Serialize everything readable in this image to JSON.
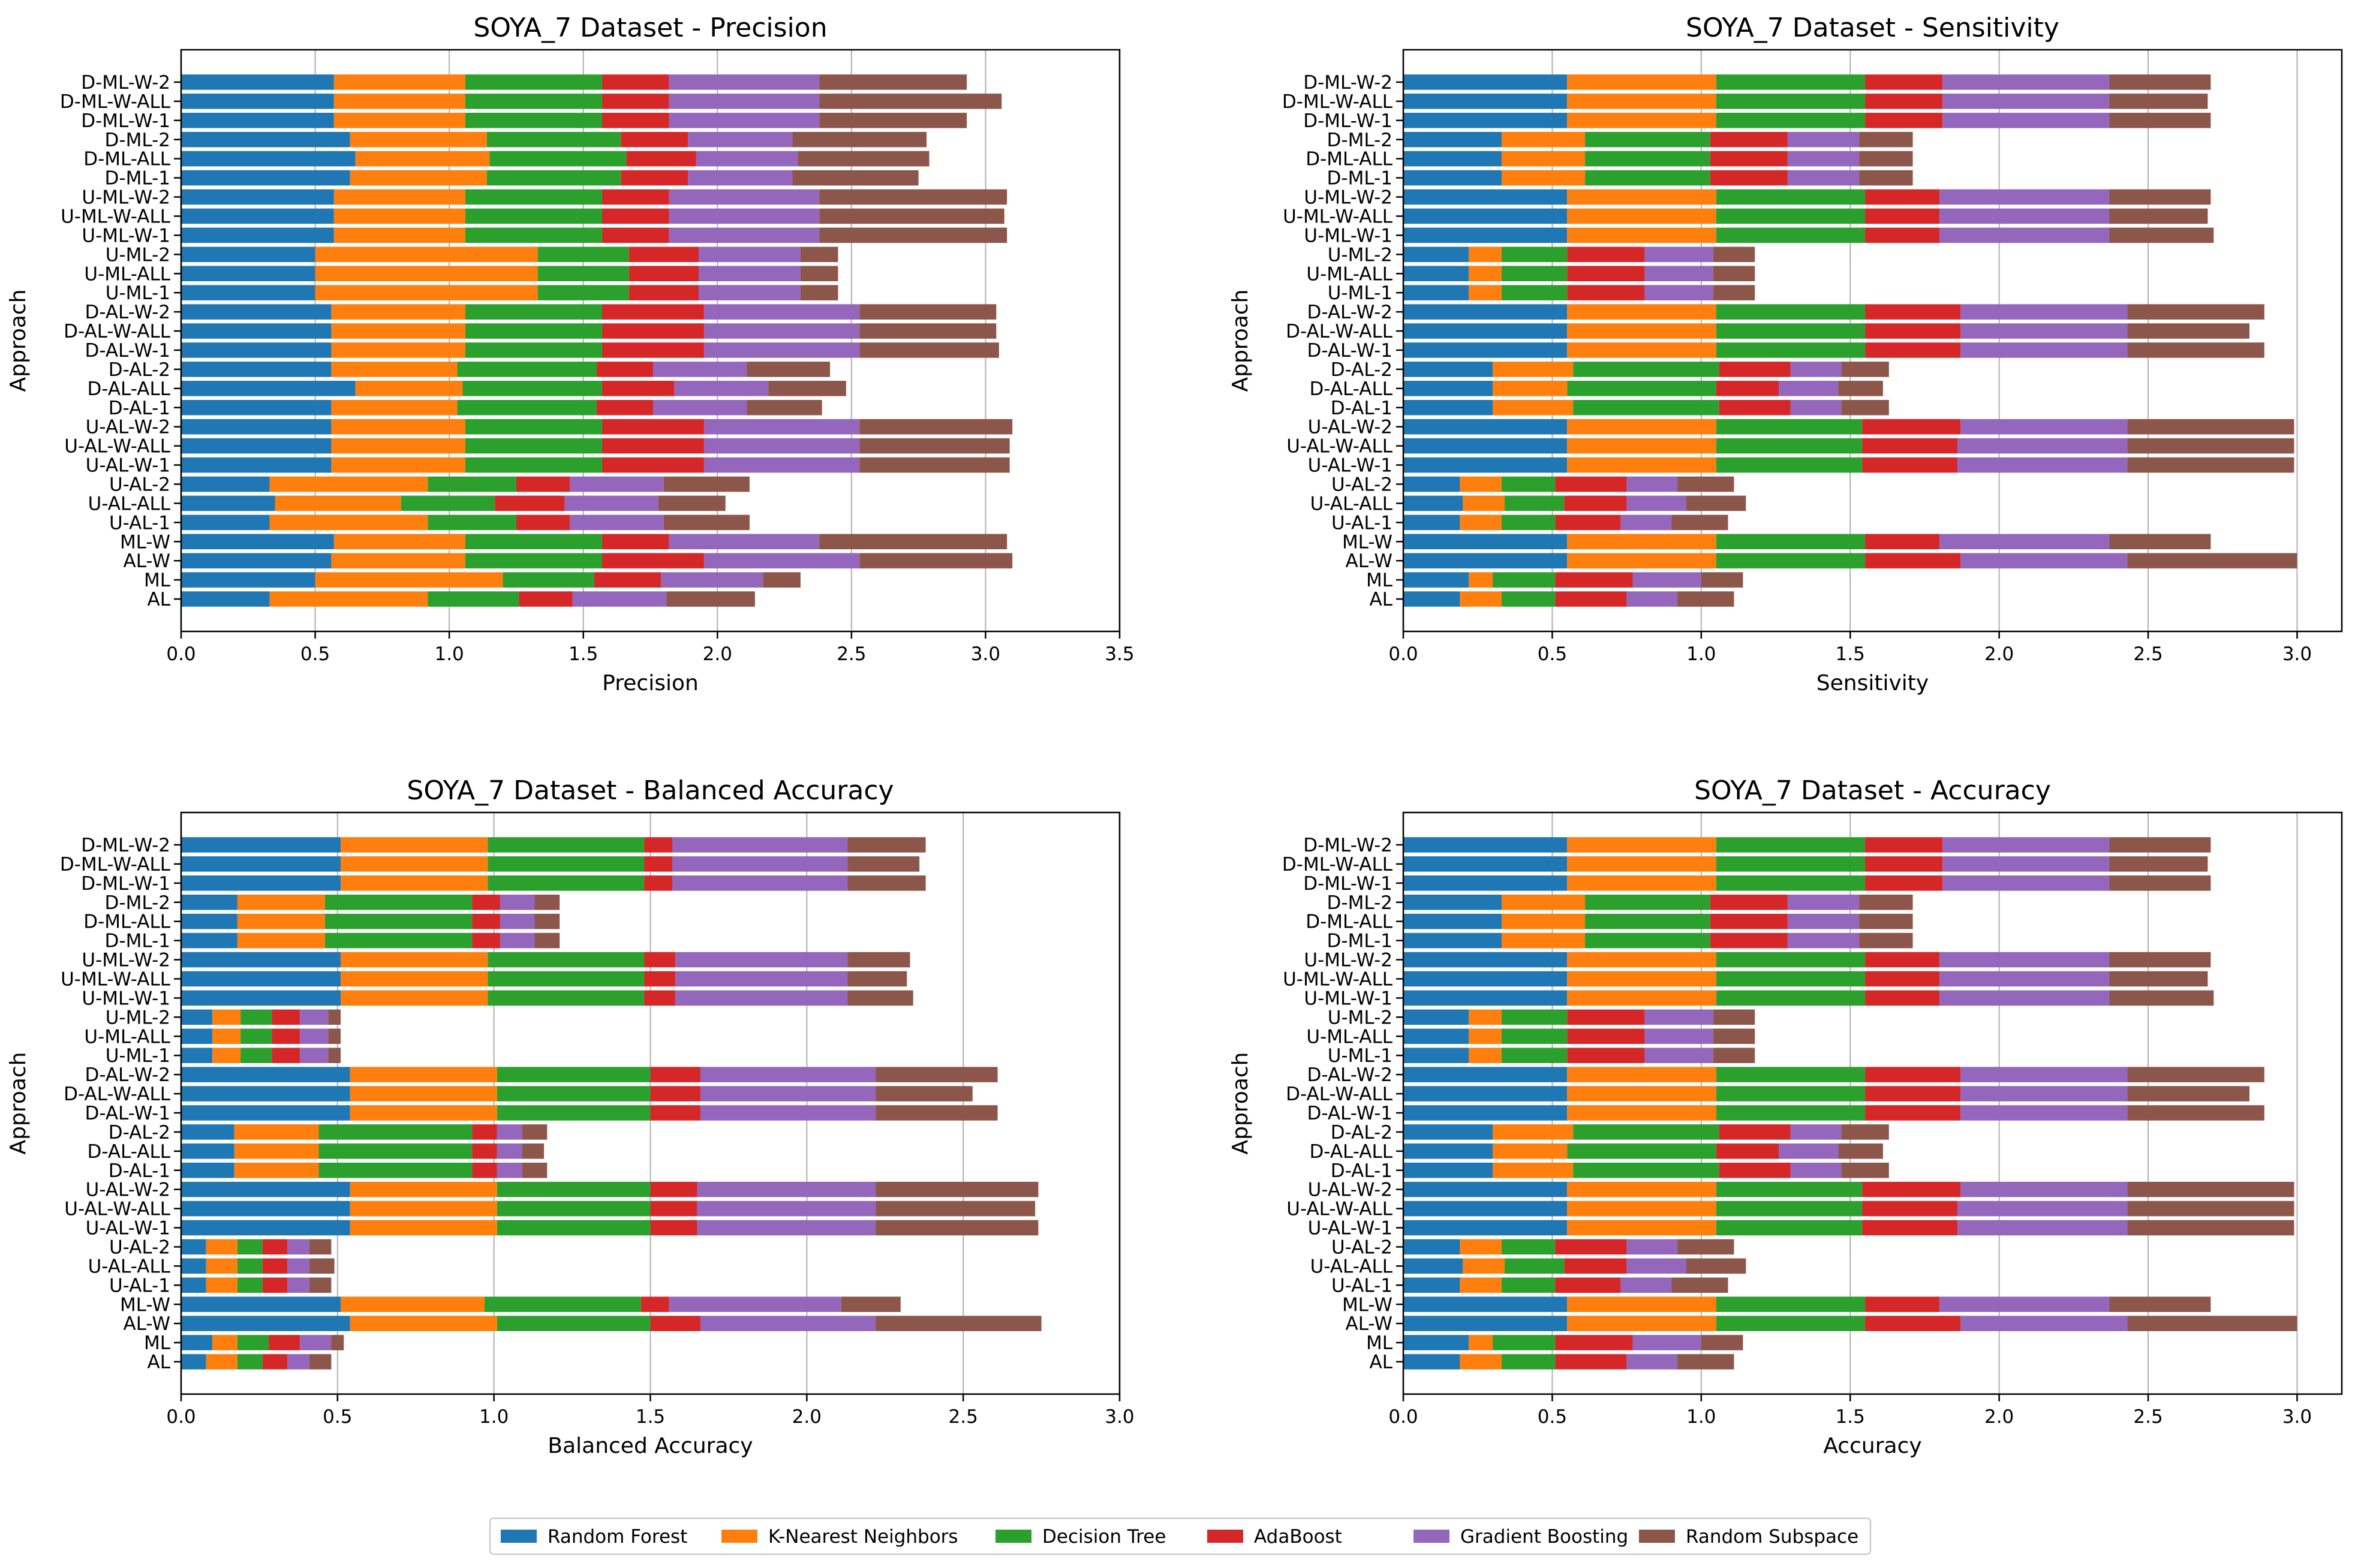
{
  "figure": {
    "legend_position": "bottom-center"
  },
  "legend": [
    {
      "name": "Random Forest",
      "color": "#1f77b4"
    },
    {
      "name": "K-Nearest Neighbors",
      "color": "#ff7f0e"
    },
    {
      "name": "Decision Tree",
      "color": "#2ca02c"
    },
    {
      "name": "AdaBoost",
      "color": "#d62728"
    },
    {
      "name": "Gradient Boosting",
      "color": "#9467bd"
    },
    {
      "name": "Random Subspace",
      "color": "#8c564b"
    }
  ],
  "chart_data": [
    {
      "type": "bar",
      "orientation": "horizontal",
      "stacked": true,
      "title": "SOYA_7 Dataset - Precision",
      "xlabel": "Precision",
      "ylabel": "Approach",
      "xlim": [
        0,
        3.5
      ],
      "xticks": [
        "0.0",
        "0.5",
        "1.0",
        "1.5",
        "2.0",
        "2.5",
        "3.0",
        "3.5"
      ],
      "grid": "x",
      "categories": [
        "D-ML-W-2",
        "D-ML-W-ALL",
        "D-ML-W-1",
        "D-ML-2",
        "D-ML-ALL",
        "D-ML-1",
        "U-ML-W-2",
        "U-ML-W-ALL",
        "U-ML-W-1",
        "U-ML-2",
        "U-ML-ALL",
        "U-ML-1",
        "D-AL-W-2",
        "D-AL-W-ALL",
        "D-AL-W-1",
        "D-AL-2",
        "D-AL-ALL",
        "D-AL-1",
        "U-AL-W-2",
        "U-AL-W-ALL",
        "U-AL-W-1",
        "U-AL-2",
        "U-AL-ALL",
        "U-AL-1",
        "ML-W",
        "AL-W",
        "ML",
        "AL"
      ],
      "series": [
        {
          "name": "Random Forest",
          "values": [
            0.57,
            0.57,
            0.57,
            0.63,
            0.65,
            0.63,
            0.57,
            0.57,
            0.57,
            0.5,
            0.5,
            0.5,
            0.56,
            0.56,
            0.56,
            0.56,
            0.65,
            0.56,
            0.56,
            0.56,
            0.56,
            0.33,
            0.35,
            0.33,
            0.57,
            0.56,
            0.5,
            0.33
          ]
        },
        {
          "name": "K-Nearest Neighbors",
          "values": [
            0.49,
            0.49,
            0.49,
            0.51,
            0.5,
            0.51,
            0.49,
            0.49,
            0.49,
            0.83,
            0.83,
            0.83,
            0.5,
            0.5,
            0.5,
            0.47,
            0.4,
            0.47,
            0.5,
            0.5,
            0.5,
            0.59,
            0.47,
            0.59,
            0.49,
            0.5,
            0.7,
            0.59
          ]
        },
        {
          "name": "Decision Tree",
          "values": [
            0.51,
            0.51,
            0.51,
            0.5,
            0.51,
            0.5,
            0.51,
            0.51,
            0.51,
            0.34,
            0.34,
            0.34,
            0.51,
            0.51,
            0.51,
            0.52,
            0.52,
            0.52,
            0.51,
            0.51,
            0.51,
            0.33,
            0.35,
            0.33,
            0.51,
            0.51,
            0.34,
            0.34
          ]
        },
        {
          "name": "AdaBoost",
          "values": [
            0.25,
            0.25,
            0.25,
            0.25,
            0.26,
            0.25,
            0.25,
            0.25,
            0.25,
            0.26,
            0.26,
            0.26,
            0.38,
            0.38,
            0.38,
            0.21,
            0.27,
            0.21,
            0.38,
            0.38,
            0.38,
            0.2,
            0.26,
            0.2,
            0.25,
            0.38,
            0.25,
            0.2
          ]
        },
        {
          "name": "Gradient Boosting",
          "values": [
            0.56,
            0.56,
            0.56,
            0.39,
            0.38,
            0.39,
            0.56,
            0.56,
            0.56,
            0.38,
            0.38,
            0.38,
            0.58,
            0.58,
            0.58,
            0.35,
            0.35,
            0.35,
            0.58,
            0.58,
            0.58,
            0.35,
            0.35,
            0.35,
            0.56,
            0.58,
            0.38,
            0.35
          ]
        },
        {
          "name": "Random Subspace",
          "values": [
            0.55,
            0.68,
            0.55,
            0.5,
            0.49,
            0.47,
            0.7,
            0.69,
            0.7,
            0.14,
            0.14,
            0.14,
            0.51,
            0.51,
            0.52,
            0.31,
            0.29,
            0.28,
            0.57,
            0.56,
            0.56,
            0.32,
            0.25,
            0.32,
            0.7,
            0.57,
            0.14,
            0.33
          ]
        }
      ]
    },
    {
      "type": "bar",
      "orientation": "horizontal",
      "stacked": true,
      "title": "SOYA_7 Dataset - Sensitivity",
      "xlabel": "Sensitivity",
      "ylabel": "Approach",
      "xlim": [
        0,
        3.15
      ],
      "xticks": [
        "0.0",
        "0.5",
        "1.0",
        "1.5",
        "2.0",
        "2.5",
        "3.0"
      ],
      "grid": "x",
      "categories": [
        "D-ML-W-2",
        "D-ML-W-ALL",
        "D-ML-W-1",
        "D-ML-2",
        "D-ML-ALL",
        "D-ML-1",
        "U-ML-W-2",
        "U-ML-W-ALL",
        "U-ML-W-1",
        "U-ML-2",
        "U-ML-ALL",
        "U-ML-1",
        "D-AL-W-2",
        "D-AL-W-ALL",
        "D-AL-W-1",
        "D-AL-2",
        "D-AL-ALL",
        "D-AL-1",
        "U-AL-W-2",
        "U-AL-W-ALL",
        "U-AL-W-1",
        "U-AL-2",
        "U-AL-ALL",
        "U-AL-1",
        "ML-W",
        "AL-W",
        "ML",
        "AL"
      ],
      "series": [
        {
          "name": "Random Forest",
          "values": [
            0.55,
            0.55,
            0.55,
            0.33,
            0.33,
            0.33,
            0.55,
            0.55,
            0.55,
            0.22,
            0.22,
            0.22,
            0.55,
            0.55,
            0.55,
            0.3,
            0.3,
            0.3,
            0.55,
            0.55,
            0.55,
            0.19,
            0.2,
            0.19,
            0.55,
            0.55,
            0.22,
            0.19
          ]
        },
        {
          "name": "K-Nearest Neighbors",
          "values": [
            0.5,
            0.5,
            0.5,
            0.28,
            0.28,
            0.28,
            0.5,
            0.5,
            0.5,
            0.11,
            0.11,
            0.11,
            0.5,
            0.5,
            0.5,
            0.27,
            0.25,
            0.27,
            0.5,
            0.5,
            0.5,
            0.14,
            0.14,
            0.14,
            0.5,
            0.5,
            0.08,
            0.14
          ]
        },
        {
          "name": "Decision Tree",
          "values": [
            0.5,
            0.5,
            0.5,
            0.42,
            0.42,
            0.42,
            0.5,
            0.5,
            0.5,
            0.22,
            0.22,
            0.22,
            0.5,
            0.5,
            0.5,
            0.49,
            0.5,
            0.49,
            0.49,
            0.49,
            0.49,
            0.18,
            0.2,
            0.18,
            0.5,
            0.5,
            0.21,
            0.18
          ]
        },
        {
          "name": "AdaBoost",
          "values": [
            0.26,
            0.26,
            0.26,
            0.26,
            0.26,
            0.26,
            0.25,
            0.25,
            0.25,
            0.26,
            0.26,
            0.26,
            0.32,
            0.32,
            0.32,
            0.24,
            0.21,
            0.24,
            0.33,
            0.32,
            0.32,
            0.24,
            0.21,
            0.22,
            0.25,
            0.32,
            0.26,
            0.24
          ]
        },
        {
          "name": "Gradient Boosting",
          "values": [
            0.56,
            0.56,
            0.56,
            0.24,
            0.24,
            0.24,
            0.57,
            0.57,
            0.57,
            0.23,
            0.23,
            0.23,
            0.56,
            0.56,
            0.56,
            0.17,
            0.2,
            0.17,
            0.56,
            0.57,
            0.57,
            0.17,
            0.2,
            0.17,
            0.57,
            0.56,
            0.23,
            0.17
          ]
        },
        {
          "name": "Random Subspace",
          "values": [
            0.34,
            0.33,
            0.34,
            0.18,
            0.18,
            0.18,
            0.34,
            0.33,
            0.35,
            0.14,
            0.14,
            0.14,
            0.46,
            0.41,
            0.46,
            0.16,
            0.15,
            0.16,
            0.56,
            0.56,
            0.56,
            0.19,
            0.2,
            0.19,
            0.34,
            0.57,
            0.14,
            0.19
          ]
        }
      ]
    },
    {
      "type": "bar",
      "orientation": "horizontal",
      "stacked": true,
      "title": "SOYA_7 Dataset - Balanced Accuracy",
      "xlabel": "Balanced Accuracy",
      "ylabel": "Approach",
      "xlim": [
        0,
        3.0
      ],
      "xticks": [
        "0.0",
        "0.5",
        "1.0",
        "1.5",
        "2.0",
        "2.5",
        "3.0"
      ],
      "grid": "x",
      "categories": [
        "D-ML-W-2",
        "D-ML-W-ALL",
        "D-ML-W-1",
        "D-ML-2",
        "D-ML-ALL",
        "D-ML-1",
        "U-ML-W-2",
        "U-ML-W-ALL",
        "U-ML-W-1",
        "U-ML-2",
        "U-ML-ALL",
        "U-ML-1",
        "D-AL-W-2",
        "D-AL-W-ALL",
        "D-AL-W-1",
        "D-AL-2",
        "D-AL-ALL",
        "D-AL-1",
        "U-AL-W-2",
        "U-AL-W-ALL",
        "U-AL-W-1",
        "U-AL-2",
        "U-AL-ALL",
        "U-AL-1",
        "ML-W",
        "AL-W",
        "ML",
        "AL"
      ],
      "series": [
        {
          "name": "Random Forest",
          "values": [
            0.51,
            0.51,
            0.51,
            0.18,
            0.18,
            0.18,
            0.51,
            0.51,
            0.51,
            0.1,
            0.1,
            0.1,
            0.54,
            0.54,
            0.54,
            0.17,
            0.17,
            0.17,
            0.54,
            0.54,
            0.54,
            0.08,
            0.08,
            0.08,
            0.51,
            0.54,
            0.1,
            0.08
          ]
        },
        {
          "name": "K-Nearest Neighbors",
          "values": [
            0.47,
            0.47,
            0.47,
            0.28,
            0.28,
            0.28,
            0.47,
            0.47,
            0.47,
            0.09,
            0.09,
            0.09,
            0.47,
            0.47,
            0.47,
            0.27,
            0.27,
            0.27,
            0.47,
            0.47,
            0.47,
            0.1,
            0.1,
            0.1,
            0.46,
            0.47,
            0.08,
            0.1
          ]
        },
        {
          "name": "Decision Tree",
          "values": [
            0.5,
            0.5,
            0.5,
            0.47,
            0.47,
            0.47,
            0.5,
            0.5,
            0.5,
            0.1,
            0.1,
            0.1,
            0.49,
            0.49,
            0.49,
            0.49,
            0.49,
            0.49,
            0.49,
            0.49,
            0.49,
            0.08,
            0.08,
            0.08,
            0.5,
            0.49,
            0.1,
            0.08
          ]
        },
        {
          "name": "AdaBoost",
          "values": [
            0.09,
            0.09,
            0.09,
            0.09,
            0.09,
            0.09,
            0.1,
            0.1,
            0.1,
            0.09,
            0.09,
            0.09,
            0.16,
            0.16,
            0.16,
            0.08,
            0.08,
            0.08,
            0.15,
            0.15,
            0.15,
            0.08,
            0.08,
            0.08,
            0.09,
            0.16,
            0.1,
            0.08
          ]
        },
        {
          "name": "Gradient Boosting",
          "values": [
            0.56,
            0.56,
            0.56,
            0.11,
            0.11,
            0.11,
            0.55,
            0.55,
            0.55,
            0.09,
            0.09,
            0.09,
            0.56,
            0.56,
            0.56,
            0.08,
            0.08,
            0.08,
            0.57,
            0.57,
            0.57,
            0.07,
            0.07,
            0.07,
            0.55,
            0.56,
            0.1,
            0.07
          ]
        },
        {
          "name": "Random Subspace",
          "values": [
            0.25,
            0.23,
            0.25,
            0.08,
            0.08,
            0.08,
            0.2,
            0.19,
            0.21,
            0.04,
            0.04,
            0.04,
            0.39,
            0.31,
            0.39,
            0.08,
            0.07,
            0.08,
            0.52,
            0.51,
            0.52,
            0.07,
            0.08,
            0.07,
            0.19,
            0.53,
            0.04,
            0.07
          ]
        }
      ]
    },
    {
      "type": "bar",
      "orientation": "horizontal",
      "stacked": true,
      "title": "SOYA_7 Dataset - Accuracy",
      "xlabel": "Accuracy",
      "ylabel": "Approach",
      "xlim": [
        0,
        3.15
      ],
      "xticks": [
        "0.0",
        "0.5",
        "1.0",
        "1.5",
        "2.0",
        "2.5",
        "3.0"
      ],
      "grid": "x",
      "categories": [
        "D-ML-W-2",
        "D-ML-W-ALL",
        "D-ML-W-1",
        "D-ML-2",
        "D-ML-ALL",
        "D-ML-1",
        "U-ML-W-2",
        "U-ML-W-ALL",
        "U-ML-W-1",
        "U-ML-2",
        "U-ML-ALL",
        "U-ML-1",
        "D-AL-W-2",
        "D-AL-W-ALL",
        "D-AL-W-1",
        "D-AL-2",
        "D-AL-ALL",
        "D-AL-1",
        "U-AL-W-2",
        "U-AL-W-ALL",
        "U-AL-W-1",
        "U-AL-2",
        "U-AL-ALL",
        "U-AL-1",
        "ML-W",
        "AL-W",
        "ML",
        "AL"
      ],
      "series": [
        {
          "name": "Random Forest",
          "values": [
            0.55,
            0.55,
            0.55,
            0.33,
            0.33,
            0.33,
            0.55,
            0.55,
            0.55,
            0.22,
            0.22,
            0.22,
            0.55,
            0.55,
            0.55,
            0.3,
            0.3,
            0.3,
            0.55,
            0.55,
            0.55,
            0.19,
            0.2,
            0.19,
            0.55,
            0.55,
            0.22,
            0.19
          ]
        },
        {
          "name": "K-Nearest Neighbors",
          "values": [
            0.5,
            0.5,
            0.5,
            0.28,
            0.28,
            0.28,
            0.5,
            0.5,
            0.5,
            0.11,
            0.11,
            0.11,
            0.5,
            0.5,
            0.5,
            0.27,
            0.25,
            0.27,
            0.5,
            0.5,
            0.5,
            0.14,
            0.14,
            0.14,
            0.5,
            0.5,
            0.08,
            0.14
          ]
        },
        {
          "name": "Decision Tree",
          "values": [
            0.5,
            0.5,
            0.5,
            0.42,
            0.42,
            0.42,
            0.5,
            0.5,
            0.5,
            0.22,
            0.22,
            0.22,
            0.5,
            0.5,
            0.5,
            0.49,
            0.5,
            0.49,
            0.49,
            0.49,
            0.49,
            0.18,
            0.2,
            0.18,
            0.5,
            0.5,
            0.21,
            0.18
          ]
        },
        {
          "name": "AdaBoost",
          "values": [
            0.26,
            0.26,
            0.26,
            0.26,
            0.26,
            0.26,
            0.25,
            0.25,
            0.25,
            0.26,
            0.26,
            0.26,
            0.32,
            0.32,
            0.32,
            0.24,
            0.21,
            0.24,
            0.33,
            0.32,
            0.32,
            0.24,
            0.21,
            0.22,
            0.25,
            0.32,
            0.26,
            0.24
          ]
        },
        {
          "name": "Gradient Boosting",
          "values": [
            0.56,
            0.56,
            0.56,
            0.24,
            0.24,
            0.24,
            0.57,
            0.57,
            0.57,
            0.23,
            0.23,
            0.23,
            0.56,
            0.56,
            0.56,
            0.17,
            0.2,
            0.17,
            0.56,
            0.57,
            0.57,
            0.17,
            0.2,
            0.17,
            0.57,
            0.56,
            0.23,
            0.17
          ]
        },
        {
          "name": "Random Subspace",
          "values": [
            0.34,
            0.33,
            0.34,
            0.18,
            0.18,
            0.18,
            0.34,
            0.33,
            0.35,
            0.14,
            0.14,
            0.14,
            0.46,
            0.41,
            0.46,
            0.16,
            0.15,
            0.16,
            0.56,
            0.56,
            0.56,
            0.19,
            0.2,
            0.19,
            0.34,
            0.57,
            0.14,
            0.19
          ]
        }
      ]
    }
  ]
}
